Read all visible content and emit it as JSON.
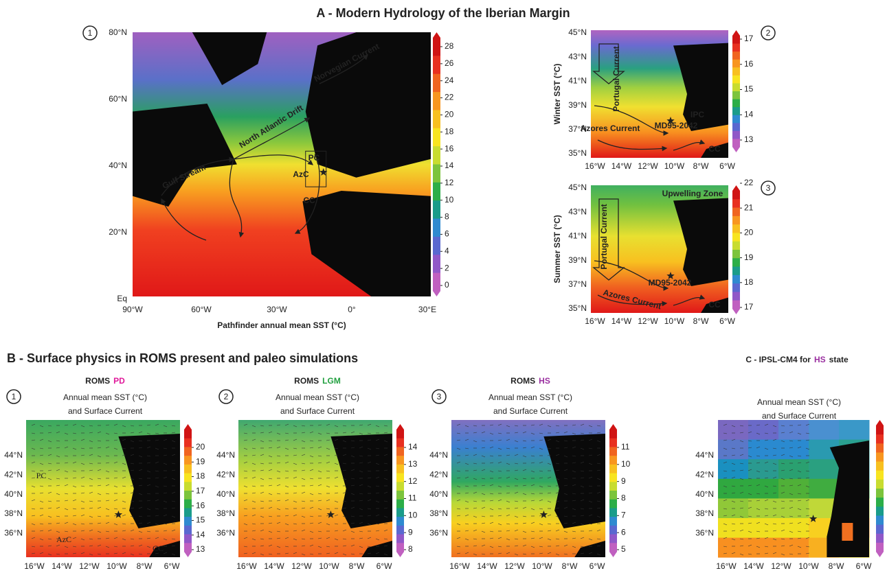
{
  "panel_a": {
    "title": "A - Modern Hydrology of the Iberian Margin",
    "maps": [
      {
        "circle": "1",
        "yticks": [
          "80°N",
          "60°N",
          "40°N",
          "20°N",
          "Eq"
        ],
        "xticks": [
          "90°W",
          "60°W",
          "30°W",
          "0°",
          "30°E"
        ],
        "xlabel": "Pathfinder annual mean SST (°C)",
        "colorbar": [
          28,
          26,
          24,
          22,
          20,
          18,
          16,
          14,
          12,
          10,
          8,
          6,
          4,
          2,
          0
        ],
        "annotations": [
          "Norvegian Current",
          "North Atlantic Drift",
          "Gulf Stream",
          "PC",
          "AzC",
          "CC"
        ]
      },
      {
        "circle": "2",
        "ylabel": "Winter SST (°C)",
        "yticks": [
          "45°N",
          "43°N",
          "41°N",
          "39°N",
          "37°N",
          "35°N"
        ],
        "xticks": [
          "16°W",
          "14°W",
          "12°W",
          "10°W",
          "8°W",
          "6°W"
        ],
        "colorbar": [
          17,
          16,
          15,
          14,
          13
        ],
        "annotations": [
          "Portugal Current",
          "Azores Current",
          "IPC",
          "MD95-2042",
          "CC"
        ]
      },
      {
        "circle": "3",
        "ylabel": "Summer SST (°C)",
        "yticks": [
          "45°N",
          "43°N",
          "41°N",
          "39°N",
          "37°N",
          "35°N"
        ],
        "xticks": [
          "16°W",
          "14°W",
          "12°W",
          "10°W",
          "8°W",
          "6°W"
        ],
        "colorbar": [
          22,
          21,
          20,
          19,
          18,
          17
        ],
        "annotations": [
          "Upwelling Zone",
          "Portugal Current",
          "MD95-2042",
          "Azores Current",
          "CC"
        ]
      }
    ]
  },
  "panel_b": {
    "title": "B - Surface physics in ROMS present and paleo simulations",
    "maps": [
      {
        "circle": "1",
        "title": "ROMS",
        "tag": "PD",
        "tag_color": "#e0189a",
        "subtitle": [
          "Annual mean SST (°C)",
          "and Surface Current"
        ],
        "yticks": [
          "44°N",
          "42°N",
          "40°N",
          "38°N",
          "36°N"
        ],
        "xticks": [
          "16°W",
          "14°W",
          "12°W",
          "10°W",
          "8°W",
          "6°W"
        ],
        "colorbar": [
          20,
          19,
          18,
          17,
          16,
          15,
          14,
          13
        ],
        "annotations": [
          "PC",
          "AzC",
          "CC"
        ]
      },
      {
        "circle": "2",
        "title": "ROMS",
        "tag": "LGM",
        "tag_color": "#22a040",
        "subtitle": [
          "Annual mean SST (°C)",
          "and Surface Current"
        ],
        "yticks": [
          "44°N",
          "42°N",
          "40°N",
          "38°N",
          "36°N"
        ],
        "xticks": [
          "16°W",
          "14°W",
          "12°W",
          "10°W",
          "8°W",
          "6°W"
        ],
        "colorbar": [
          14,
          13,
          12,
          11,
          10,
          9,
          8
        ]
      },
      {
        "circle": "3",
        "title": "ROMS",
        "tag": "HS",
        "tag_color": "#9a2fa0",
        "subtitle": [
          "Annual mean SST (°C)",
          "and Surface Current"
        ],
        "yticks": [
          "44°N",
          "42°N",
          "40°N",
          "38°N",
          "36°N"
        ],
        "xticks": [
          "16°W",
          "14°W",
          "12°W",
          "10°W",
          "8°W",
          "6°W"
        ],
        "colorbar": [
          11,
          10,
          9,
          8,
          7,
          6,
          5
        ]
      }
    ]
  },
  "panel_c": {
    "title_parts": [
      "C - IPSL-CM4 for",
      "HS",
      "state"
    ],
    "highlight_color": "#9a2fa0",
    "map": {
      "subtitle": [
        "Annual mean SST (°C)",
        "and Surface Current"
      ],
      "yticks": [
        "44°N",
        "42°N",
        "40°N",
        "38°N",
        "36°N"
      ],
      "xticks": [
        "16°W",
        "14°W",
        "12°W",
        "10°W",
        "8°W",
        "6°W"
      ]
    }
  }
}
